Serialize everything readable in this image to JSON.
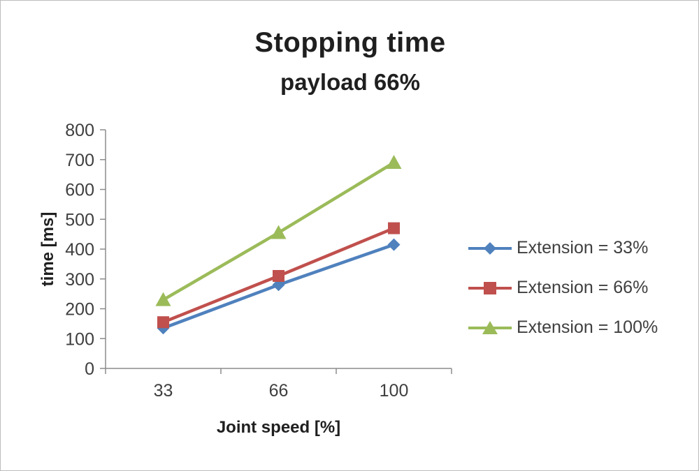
{
  "chart_data": {
    "type": "line",
    "title": "Stopping time",
    "subtitle": "payload 66%",
    "xlabel": "Joint speed [%]",
    "ylabel": "time [ms]",
    "categories": [
      "33",
      "66",
      "100"
    ],
    "series": [
      {
        "name": "Extension = 33%",
        "marker": "diamond",
        "color": "#4F81BD",
        "values": [
          135,
          280,
          415
        ]
      },
      {
        "name": "Extension = 66%",
        "marker": "square",
        "color": "#C0504D",
        "values": [
          155,
          310,
          470
        ]
      },
      {
        "name": "Extension = 100%",
        "marker": "triangle",
        "color": "#9BBB59",
        "values": [
          230,
          455,
          690
        ]
      }
    ],
    "ylim": [
      0,
      800
    ],
    "ytick_step": 100,
    "grid": false,
    "legend_position": "right",
    "axis_color": "#8c8c8c",
    "text_color": "#3f3f3f"
  }
}
